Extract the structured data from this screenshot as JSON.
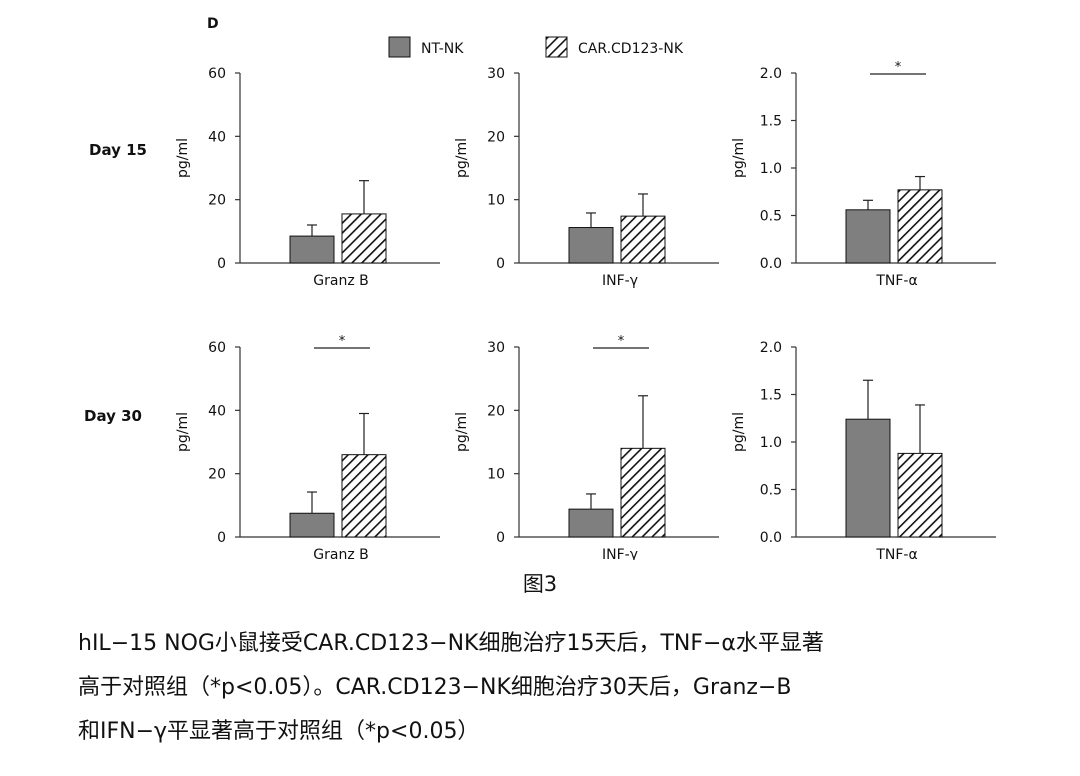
{
  "panel_label": "D",
  "legend": {
    "items": [
      {
        "label": "NT-NK",
        "fill": "solid"
      },
      {
        "label": "CAR.CD123-NK",
        "fill": "hatch"
      }
    ]
  },
  "row_labels": [
    "Day 15",
    "Day 30"
  ],
  "colors": {
    "solid_bar": "#7f7f7f",
    "hatch_line": "#111111",
    "axis": "#333333"
  },
  "chart_data": [
    {
      "type": "bar",
      "row": "Day 15",
      "ylabel": "pg/ml",
      "category": "Granz B",
      "ylim": [
        0,
        60
      ],
      "yticks": [
        "0",
        "20",
        "40",
        "60"
      ],
      "series": [
        {
          "name": "NT-NK",
          "value": 8.5,
          "error": 3.5
        },
        {
          "name": "CAR.CD123-NK",
          "value": 15.5,
          "error": 10.5
        }
      ],
      "significance": null
    },
    {
      "type": "bar",
      "row": "Day 15",
      "ylabel": "pg/ml",
      "category": "INF-γ",
      "ylim": [
        0,
        30
      ],
      "yticks": [
        "0",
        "10",
        "20",
        "30"
      ],
      "series": [
        {
          "name": "NT-NK",
          "value": 5.6,
          "error": 2.3
        },
        {
          "name": "CAR.CD123-NK",
          "value": 7.4,
          "error": 3.5
        }
      ],
      "significance": null
    },
    {
      "type": "bar",
      "row": "Day 15",
      "ylabel": "pg/ml",
      "category": "TNF-α",
      "ylim": [
        0,
        2
      ],
      "yticks": [
        "0.0",
        "0.5",
        "1.0",
        "1.5",
        "2.0"
      ],
      "series": [
        {
          "name": "NT-NK",
          "value": 0.56,
          "error": 0.1
        },
        {
          "name": "CAR.CD123-NK",
          "value": 0.77,
          "error": 0.14
        }
      ],
      "significance": "*"
    },
    {
      "type": "bar",
      "row": "Day 30",
      "ylabel": "pg/ml",
      "category": "Granz B",
      "ylim": [
        0,
        60
      ],
      "yticks": [
        "0",
        "20",
        "40",
        "60"
      ],
      "series": [
        {
          "name": "NT-NK",
          "value": 7.5,
          "error": 6.7
        },
        {
          "name": "CAR.CD123-NK",
          "value": 26,
          "error": 13
        }
      ],
      "significance": "*"
    },
    {
      "type": "bar",
      "row": "Day 30",
      "ylabel": "pg/ml",
      "category": "INF-γ",
      "ylim": [
        0,
        30
      ],
      "yticks": [
        "0",
        "10",
        "20",
        "30"
      ],
      "series": [
        {
          "name": "NT-NK",
          "value": 4.4,
          "error": 2.4
        },
        {
          "name": "CAR.CD123-NK",
          "value": 14,
          "error": 8.3
        }
      ],
      "significance": "*"
    },
    {
      "type": "bar",
      "row": "Day 30",
      "ylabel": "pg/ml",
      "category": "TNF-α",
      "ylim": [
        0,
        2
      ],
      "yticks": [
        "0.0",
        "0.5",
        "1.0",
        "1.5",
        "2.0"
      ],
      "series": [
        {
          "name": "NT-NK",
          "value": 1.24,
          "error": 0.41
        },
        {
          "name": "CAR.CD123-NK",
          "value": 0.88,
          "error": 0.51
        }
      ],
      "significance": null
    }
  ],
  "figure_caption": "图3",
  "description_lines": [
    "hIL−15 NOG小鼠接受CAR.CD123−NK细胞治疗15天后，TNF−α水平显著",
    "高于对照组（*p<0.05）。CAR.CD123−NK细胞治疗30天后，Granz−B",
    "和IFN−γ平显著高于对照组（*p<0.05）"
  ]
}
